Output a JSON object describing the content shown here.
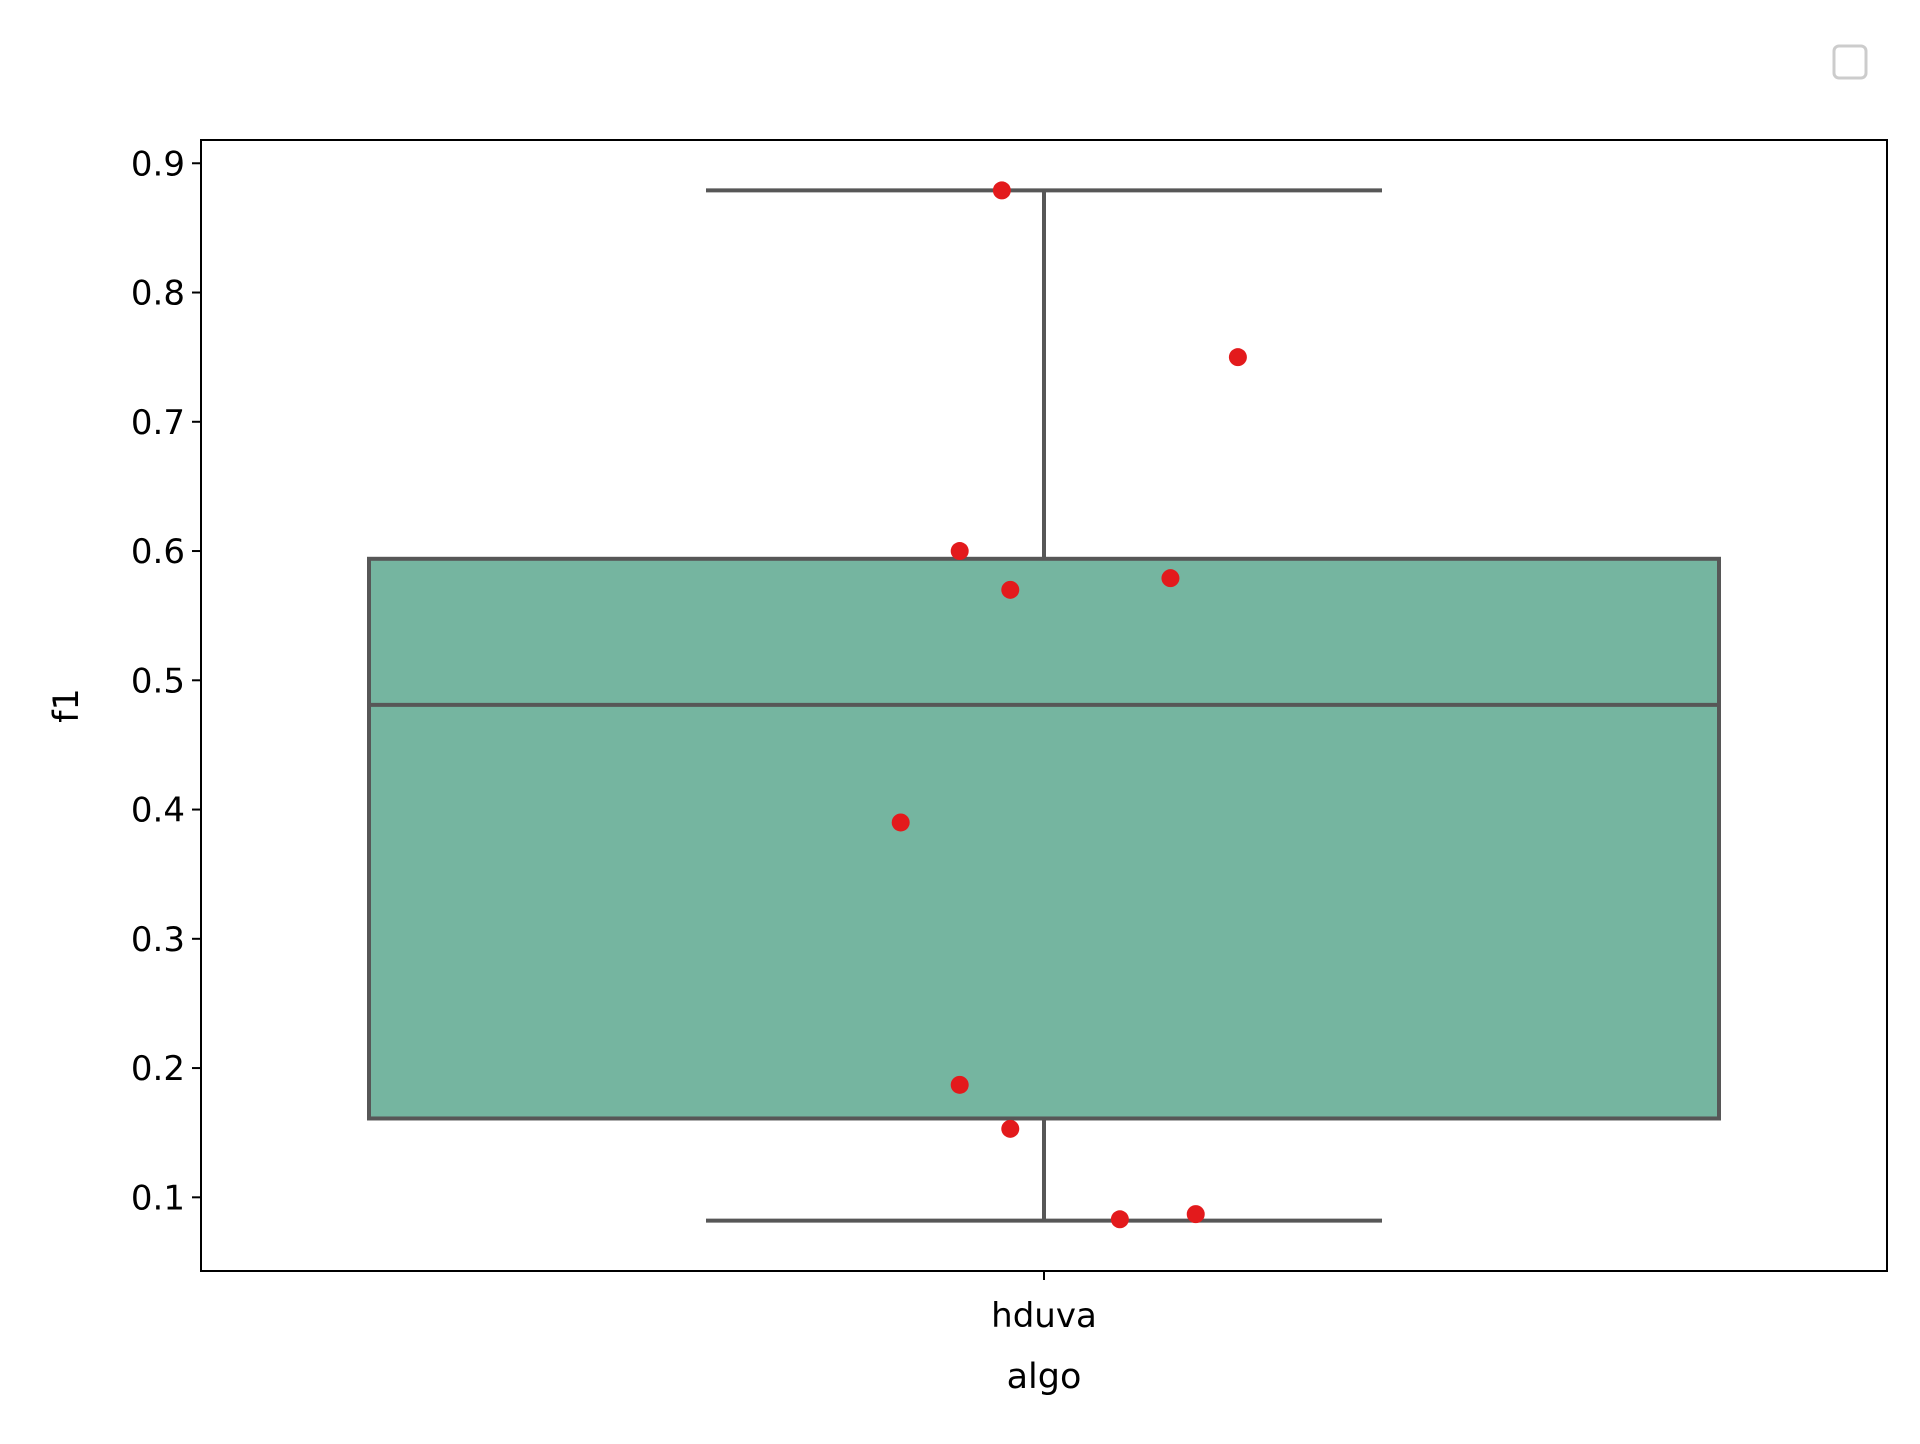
{
  "chart_data": {
    "type": "box",
    "xlabel": "algo",
    "ylabel": "f1",
    "categories": [
      "hduva"
    ],
    "ylim": [
      0.043,
      0.918
    ],
    "yticks": [
      0.1,
      0.2,
      0.3,
      0.4,
      0.5,
      0.6,
      0.7,
      0.8,
      0.9
    ],
    "ytick_labels": [
      "0.1",
      "0.2",
      "0.3",
      "0.4",
      "0.5",
      "0.6",
      "0.7",
      "0.8",
      "0.9"
    ],
    "grid": false,
    "legend": {
      "placement": "top-right",
      "entries": []
    },
    "box": {
      "category": "hduva",
      "whisker_low": 0.082,
      "q1": 0.161,
      "median": 0.481,
      "q3": 0.594,
      "whisker_high": 0.879
    },
    "points": [
      {
        "category": "hduva",
        "jitter": -0.05,
        "y": 0.879
      },
      {
        "category": "hduva",
        "jitter": 0.23,
        "y": 0.75
      },
      {
        "category": "hduva",
        "jitter": -0.1,
        "y": 0.6
      },
      {
        "category": "hduva",
        "jitter": -0.04,
        "y": 0.57
      },
      {
        "category": "hduva",
        "jitter": 0.15,
        "y": 0.579
      },
      {
        "category": "hduva",
        "jitter": -0.17,
        "y": 0.39
      },
      {
        "category": "hduva",
        "jitter": -0.1,
        "y": 0.187
      },
      {
        "category": "hduva",
        "jitter": -0.04,
        "y": 0.153
      },
      {
        "category": "hduva",
        "jitter": 0.09,
        "y": 0.083
      },
      {
        "category": "hduva",
        "jitter": 0.18,
        "y": 0.087
      }
    ],
    "colors": {
      "box_fill": "#75b5a0",
      "box_edge": "#575757",
      "point": "#e31a1c",
      "axes": "#000000",
      "legend_edge": "#cccccc"
    }
  }
}
